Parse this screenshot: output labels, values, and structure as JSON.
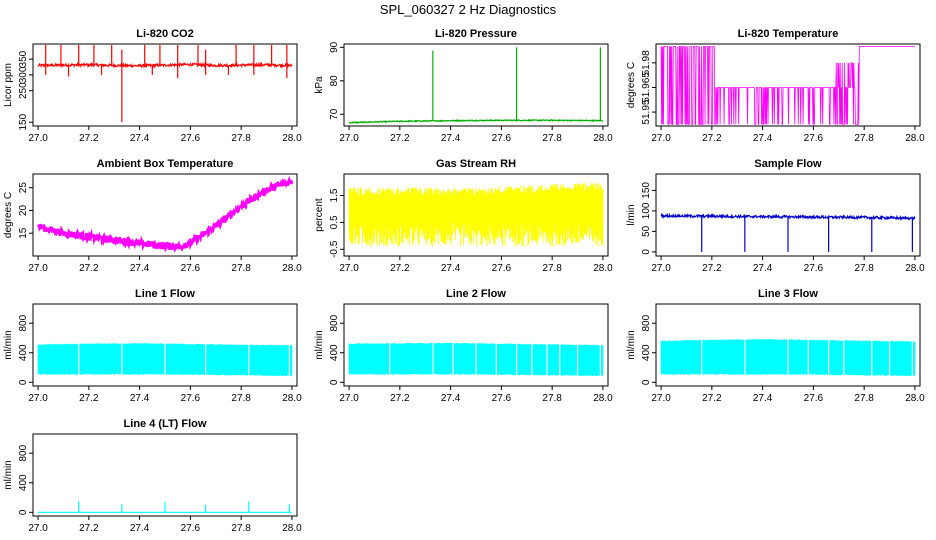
{
  "page": {
    "title": "SPL_060327  2 Hz Diagnostics"
  },
  "chart_data": [
    {
      "type": "line",
      "title": "Li-820 CO2",
      "ylabel": "Licor ppm",
      "color": "#ff0000",
      "xlim": [
        26.98,
        28.02
      ],
      "ylim": [
        138,
        398
      ],
      "xticks": [
        27.0,
        27.2,
        27.4,
        27.6,
        27.8,
        28.0
      ],
      "xtick_labels": [
        "27.0",
        "27.2",
        "27.4",
        "27.6",
        "27.8",
        "28.0"
      ],
      "yticks": [
        150,
        250,
        300,
        350
      ],
      "ytick_labels": [
        "150",
        "250",
        "300",
        "350"
      ],
      "series": [
        {
          "x": [
            27.0,
            27.1,
            27.2,
            27.3,
            27.4,
            27.5,
            27.6,
            27.7,
            27.8,
            27.9,
            28.0
          ],
          "y": [
            330,
            331,
            332,
            330,
            329,
            331,
            333,
            330,
            331,
            332,
            330
          ]
        }
      ],
      "spikes_up": [
        [
          27.03,
          395
        ],
        [
          27.09,
          395
        ],
        [
          27.16,
          395
        ],
        [
          27.22,
          395
        ],
        [
          27.29,
          395
        ],
        [
          27.33,
          380
        ],
        [
          27.42,
          395
        ],
        [
          27.48,
          395
        ],
        [
          27.55,
          395
        ],
        [
          27.63,
          395
        ],
        [
          27.66,
          380
        ],
        [
          27.78,
          395
        ],
        [
          27.85,
          395
        ],
        [
          27.92,
          395
        ],
        [
          27.98,
          395
        ]
      ],
      "spikes_down": [
        [
          27.03,
          300
        ],
        [
          27.12,
          295
        ],
        [
          27.25,
          300
        ],
        [
          27.33,
          150
        ],
        [
          27.45,
          300
        ],
        [
          27.55,
          290
        ],
        [
          27.66,
          300
        ],
        [
          27.75,
          300
        ],
        [
          27.85,
          300
        ],
        [
          27.98,
          290
        ]
      ],
      "noise": 4
    },
    {
      "type": "line",
      "title": "Li-820 Pressure",
      "ylabel": "kPa",
      "color": "#00b000",
      "xlim": [
        26.98,
        28.02
      ],
      "ylim": [
        66.5,
        91
      ],
      "xticks": [
        27.0,
        27.2,
        27.4,
        27.6,
        27.8,
        28.0
      ],
      "xtick_labels": [
        "27.0",
        "27.2",
        "27.4",
        "27.6",
        "27.8",
        "28.0"
      ],
      "yticks": [
        70,
        80,
        90
      ],
      "ytick_labels": [
        "70",
        "80",
        "90"
      ],
      "series": [
        {
          "x": [
            27.0,
            27.2,
            27.4,
            27.6,
            27.8,
            28.0
          ],
          "y": [
            67.5,
            67.9,
            68.1,
            68.2,
            68.2,
            68.1
          ]
        }
      ],
      "spikes_up": [
        [
          27.33,
          89
        ],
        [
          27.66,
          90
        ],
        [
          27.99,
          90
        ]
      ],
      "noise": 0.15
    },
    {
      "type": "line",
      "title": "Li-820 Temperature",
      "ylabel": "degrees C",
      "color": "#ff00ff",
      "xlim": [
        26.98,
        28.02
      ],
      "ylim": [
        51.9415,
        51.9915
      ],
      "xticks": [
        27.0,
        27.2,
        27.4,
        27.6,
        27.8,
        28.0
      ],
      "xtick_labels": [
        "27.0",
        "27.2",
        "27.4",
        "27.6",
        "27.8",
        "28.0"
      ],
      "yticks": [
        51.95,
        51.965,
        51.98
      ],
      "ytick_labels": [
        "51.95",
        "51.965",
        "51.98"
      ],
      "series": [
        {
          "x": [
            27.0,
            27.21,
            27.21,
            27.68,
            27.68,
            27.78,
            27.78,
            28.0
          ],
          "y": [
            51.99,
            51.99,
            51.965,
            51.965,
            51.965,
            51.98,
            51.99,
            51.99
          ]
        }
      ],
      "levels": [
        51.9425,
        51.965,
        51.98,
        51.99
      ]
    },
    {
      "type": "line",
      "title": "Ambient Box Temperature",
      "ylabel": "degrees C",
      "color": "#ff00ff",
      "xlim": [
        26.98,
        28.02
      ],
      "ylim": [
        10,
        28
      ],
      "xticks": [
        27.0,
        27.2,
        27.4,
        27.6,
        27.8,
        28.0
      ],
      "xtick_labels": [
        "27.0",
        "27.2",
        "27.4",
        "27.6",
        "27.8",
        "28.0"
      ],
      "yticks": [
        15,
        20,
        25
      ],
      "ytick_labels": [
        "15",
        "20",
        "25"
      ],
      "series": [
        {
          "x": [
            27.0,
            27.1,
            27.2,
            27.3,
            27.4,
            27.5,
            27.55,
            27.6,
            27.7,
            27.8,
            27.9,
            28.0
          ],
          "y": [
            16.5,
            15.0,
            14.2,
            13.5,
            12.8,
            12.2,
            12.0,
            12.8,
            16.5,
            21.0,
            24.5,
            26.5
          ]
        }
      ],
      "noise": 0.8
    },
    {
      "type": "line",
      "title": "Gas Stream RH",
      "ylabel": "percent",
      "color": "#ffff00",
      "xlim": [
        26.98,
        28.02
      ],
      "ylim": [
        -0.75,
        2.3
      ],
      "xticks": [
        27.0,
        27.2,
        27.4,
        27.6,
        27.8,
        28.0
      ],
      "xtick_labels": [
        "27.0",
        "27.2",
        "27.4",
        "27.6",
        "27.8",
        "28.0"
      ],
      "yticks": [
        -0.5,
        0.5,
        1.5
      ],
      "ytick_labels": [
        "-0.5",
        "0.5",
        "1.5"
      ],
      "series": [
        {
          "x": [
            27.0,
            28.0
          ],
          "y": [
            0.5,
            0.5
          ]
        }
      ],
      "band_low": [
        [
          27.0,
          -0.4
        ],
        [
          28.0,
          -0.4
        ]
      ],
      "band_high": [
        [
          27.0,
          1.8
        ],
        [
          27.5,
          1.8
        ],
        [
          28.0,
          2.0
        ]
      ],
      "noise": 0.3
    },
    {
      "type": "line",
      "title": "Sample Flow",
      "ylabel": "l/min",
      "color": "#0000cc",
      "xlim": [
        26.98,
        28.02
      ],
      "ylim": [
        -10,
        190
      ],
      "xticks": [
        27.0,
        27.2,
        27.4,
        27.6,
        27.8,
        28.0
      ],
      "xtick_labels": [
        "27.0",
        "27.2",
        "27.4",
        "27.6",
        "27.8",
        "28.0"
      ],
      "yticks": [
        0,
        50,
        100,
        150
      ],
      "ytick_labels": [
        "0",
        "50",
        "100",
        "150"
      ],
      "series": [
        {
          "x": [
            27.0,
            27.2,
            27.4,
            27.6,
            27.8,
            28.0
          ],
          "y": [
            88,
            87,
            86,
            85,
            84,
            82
          ]
        }
      ],
      "spikes_down": [
        [
          27.16,
          0
        ],
        [
          27.33,
          0
        ],
        [
          27.5,
          0
        ],
        [
          27.66,
          0
        ],
        [
          27.83,
          0
        ],
        [
          27.99,
          0
        ]
      ],
      "noise": 3
    },
    {
      "type": "area",
      "title": "Line 1 Flow",
      "ylabel": "ml/min",
      "color": "#00ffff",
      "xlim": [
        26.98,
        28.02
      ],
      "ylim": [
        -50,
        1060
      ],
      "xticks": [
        27.0,
        27.2,
        27.4,
        27.6,
        27.8,
        28.0
      ],
      "xtick_labels": [
        "27.0",
        "27.2",
        "27.4",
        "27.6",
        "27.8",
        "28.0"
      ],
      "yticks": [
        0,
        400,
        800
      ],
      "ytick_labels": [
        "0",
        "400",
        "800"
      ],
      "series": [
        {
          "x": [
            27.0,
            27.2,
            27.4,
            27.6,
            27.8,
            28.0
          ],
          "y": [
            510,
            520,
            525,
            515,
            505,
            500
          ]
        }
      ],
      "low": [
        [
          27.0,
          110
        ],
        [
          27.5,
          110
        ],
        [
          28.0,
          90
        ]
      ],
      "gaps": [
        27.16,
        27.33,
        27.5,
        27.66,
        27.83,
        27.99
      ]
    },
    {
      "type": "area",
      "title": "Line 2 Flow",
      "ylabel": "ml/min",
      "color": "#00ffff",
      "xlim": [
        26.98,
        28.02
      ],
      "ylim": [
        -50,
        1060
      ],
      "xticks": [
        27.0,
        27.2,
        27.4,
        27.6,
        27.8,
        28.0
      ],
      "xtick_labels": [
        "27.0",
        "27.2",
        "27.4",
        "27.6",
        "27.8",
        "28.0"
      ],
      "yticks": [
        0,
        400,
        800
      ],
      "ytick_labels": [
        "0",
        "400",
        "800"
      ],
      "series": [
        {
          "x": [
            27.0,
            27.2,
            27.4,
            27.6,
            27.8,
            28.0
          ],
          "y": [
            520,
            525,
            530,
            520,
            510,
            500
          ]
        }
      ],
      "low": [
        [
          27.0,
          110
        ],
        [
          27.5,
          110
        ],
        [
          28.0,
          90
        ]
      ],
      "gaps": [
        27.16,
        27.33,
        27.41,
        27.5,
        27.58,
        27.66,
        27.72,
        27.78,
        27.83,
        27.9,
        27.99
      ]
    },
    {
      "type": "area",
      "title": "Line 3 Flow",
      "ylabel": "ml/min",
      "color": "#00ffff",
      "xlim": [
        26.98,
        28.02
      ],
      "ylim": [
        -50,
        1060
      ],
      "xticks": [
        27.0,
        27.2,
        27.4,
        27.6,
        27.8,
        28.0
      ],
      "xtick_labels": [
        "27.0",
        "27.2",
        "27.4",
        "27.6",
        "27.8",
        "28.0"
      ],
      "yticks": [
        0,
        400,
        800
      ],
      "ytick_labels": [
        "0",
        "400",
        "800"
      ],
      "series": [
        {
          "x": [
            27.0,
            27.2,
            27.4,
            27.6,
            27.8,
            28.0
          ],
          "y": [
            560,
            570,
            580,
            570,
            560,
            550
          ]
        }
      ],
      "low": [
        [
          27.0,
          110
        ],
        [
          27.5,
          110
        ],
        [
          28.0,
          90
        ]
      ],
      "gaps": [
        27.16,
        27.33,
        27.5,
        27.58,
        27.66,
        27.72,
        27.83,
        27.9,
        27.99
      ]
    },
    {
      "type": "line",
      "title": "Line 4 (LT) Flow",
      "ylabel": "ml/min",
      "color": "#00ffff",
      "xlim": [
        26.98,
        28.02
      ],
      "ylim": [
        -50,
        1060
      ],
      "xticks": [
        27.0,
        27.2,
        27.4,
        27.6,
        27.8,
        28.0
      ],
      "xtick_labels": [
        "27.0",
        "27.2",
        "27.4",
        "27.6",
        "27.8",
        "28.0"
      ],
      "yticks": [
        0,
        400,
        800
      ],
      "ytick_labels": [
        "0",
        "400",
        "800"
      ],
      "series": [
        {
          "x": [
            27.0,
            28.0
          ],
          "y": [
            0,
            0
          ]
        }
      ],
      "spikes_up": [
        [
          27.16,
          150
        ],
        [
          27.33,
          110
        ],
        [
          27.5,
          140
        ],
        [
          27.66,
          100
        ],
        [
          27.83,
          150
        ],
        [
          27.99,
          110
        ]
      ],
      "noise": 0
    }
  ]
}
